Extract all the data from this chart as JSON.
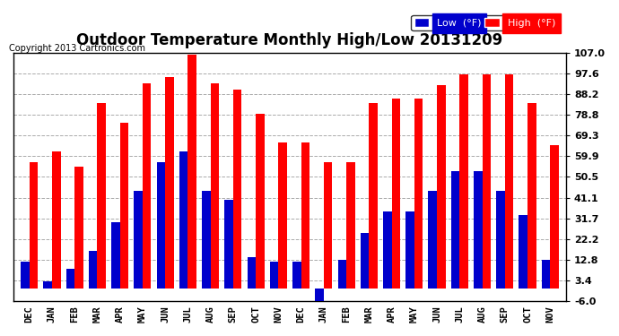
{
  "title": "Outdoor Temperature Monthly High/Low 20131209",
  "copyright": "Copyright 2013 Cartronics.com",
  "legend_low": "Low  (°F)",
  "legend_high": "High  (°F)",
  "months": [
    "DEC",
    "JAN",
    "FEB",
    "MAR",
    "APR",
    "MAY",
    "JUN",
    "JUL",
    "AUG",
    "SEP",
    "OCT",
    "NOV",
    "DEC",
    "JAN",
    "FEB",
    "MAR",
    "APR",
    "MAY",
    "JUN",
    "JUL",
    "AUG",
    "SEP",
    "OCT",
    "NOV"
  ],
  "high_values": [
    57.0,
    62.0,
    55.0,
    84.0,
    75.0,
    93.0,
    96.0,
    106.0,
    93.0,
    90.0,
    79.0,
    66.0,
    66.0,
    57.0,
    57.0,
    84.0,
    86.0,
    86.0,
    92.0,
    97.0,
    97.0,
    97.0,
    84.0,
    65.0
  ],
  "low_values": [
    12.0,
    3.0,
    9.0,
    17.0,
    30.0,
    44.0,
    57.0,
    62.0,
    44.0,
    40.0,
    14.0,
    12.0,
    12.0,
    -9.0,
    13.0,
    25.0,
    35.0,
    35.0,
    44.0,
    53.0,
    53.0,
    44.0,
    33.0,
    13.0
  ],
  "ylim": [
    -6.0,
    107.0
  ],
  "yticks": [
    -6.0,
    3.4,
    12.8,
    22.2,
    31.7,
    41.1,
    50.5,
    59.9,
    69.3,
    78.8,
    88.2,
    97.6,
    107.0
  ],
  "ytick_labels": [
    "-6.0",
    "3.4",
    "12.8",
    "22.2",
    "31.7",
    "41.1",
    "50.5",
    "59.9",
    "69.3",
    "78.8",
    "88.2",
    "97.6",
    "107.0"
  ],
  "high_color": "#ff0000",
  "low_color": "#0000cc",
  "bg_color": "#ffffff",
  "grid_color": "#aaaaaa",
  "title_fontsize": 12,
  "bar_width": 0.38
}
